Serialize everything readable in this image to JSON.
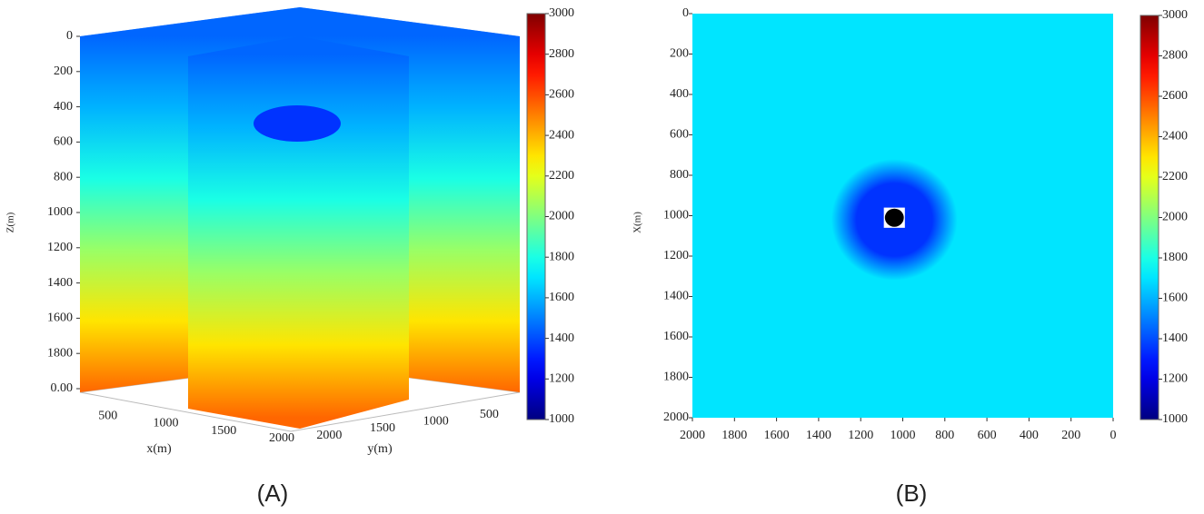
{
  "chart_data": [
    {
      "type": "volume-slice",
      "panel_label": "(A)",
      "z_label": "Z(m)",
      "x_label": "x(m)",
      "y_label": "y(m)",
      "zlim": [
        0,
        2000
      ],
      "zticks": [
        0,
        200,
        400,
        600,
        800,
        1000,
        1200,
        1400,
        1600,
        1800,
        {
          "value": 2000,
          "label": "0.00"
        }
      ],
      "xticks": [
        500,
        1000,
        1500,
        2000
      ],
      "yticks": [
        500,
        1000,
        1500,
        2000
      ],
      "colormap": "jet",
      "clim": [
        1000,
        3000
      ],
      "cticks": [
        1000,
        1200,
        1400,
        1600,
        1800,
        2000,
        2200,
        2400,
        2600,
        2800,
        3000
      ],
      "depth": [
        0,
        400,
        800,
        1200,
        1600,
        2000
      ],
      "values": [
        1450,
        1600,
        1800,
        2050,
        2300,
        2550
      ],
      "anomaly": {
        "depth": 380,
        "value": 1350
      }
    },
    {
      "type": "heatmap",
      "panel_label": "(B)",
      "y_label": "X(m)",
      "xlim": [
        2000,
        0
      ],
      "xticks": [
        2000,
        1800,
        1600,
        1400,
        1200,
        1000,
        800,
        600,
        400,
        200,
        0
      ],
      "ylim": [
        0,
        2000
      ],
      "yticks": [
        0,
        200,
        400,
        600,
        800,
        1000,
        1200,
        1400,
        1600,
        1800,
        2000
      ],
      "colormap": "jet",
      "clim": [
        1000,
        3000
      ],
      "cticks": [
        1000,
        1200,
        1400,
        1600,
        1800,
        2000,
        2200,
        2400,
        2600,
        2800,
        3000
      ],
      "background": 1700,
      "anomaly": {
        "x": 1040,
        "y": 1020,
        "radius": 300,
        "value": 1350
      },
      "core": {
        "x": 1040,
        "y": 1010,
        "radius": 45,
        "color": "#000000",
        "box": 100,
        "box_color": "#ffffff"
      }
    }
  ]
}
